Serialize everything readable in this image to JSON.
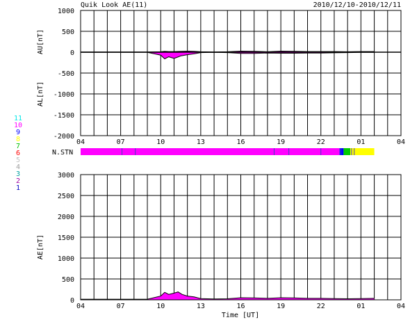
{
  "title": "Quik Look AE(11)",
  "date_range": "2010/12/10-2010/12/11",
  "xlabel": "Time [UT]",
  "nstn_label": "N.STN",
  "colors": {
    "magenta": "#ff00ff",
    "blue": "#0000ff",
    "green": "#00cc00",
    "yellow": "#ffff00",
    "grid": "#000000"
  },
  "station_scale": [
    {
      "label": "11",
      "color": "#00e6e6"
    },
    {
      "label": "10",
      "color": "#ff00ff"
    },
    {
      "label": "9",
      "color": "#0000ff"
    },
    {
      "label": "8",
      "color": "#ffff00"
    },
    {
      "label": "7",
      "color": "#00c000"
    },
    {
      "label": "6",
      "color": "#ff0000"
    },
    {
      "label": "5",
      "color": "#c0c0c0"
    },
    {
      "label": "4",
      "color": "#a0a0a0"
    },
    {
      "label": "3",
      "color": "#00a0a0"
    },
    {
      "label": "2",
      "color": "#a000a0"
    },
    {
      "label": "1",
      "color": "#0000c0"
    }
  ],
  "chart_data": [
    {
      "type": "area",
      "title": "Quik Look AE(11)",
      "ylabel_upper": "AU[nT]",
      "ylabel_lower": "AL[nT]",
      "xlabel": "",
      "x_tick_labels": [
        "04",
        "07",
        "10",
        "13",
        "16",
        "19",
        "22",
        "01",
        "04"
      ],
      "xlim": [
        4,
        28
      ],
      "ylim": [
        -2000,
        1000
      ],
      "y_tick_labels": [
        "1000",
        "500",
        "0",
        "-500",
        "-1000",
        "-1500",
        "-2000"
      ],
      "grid": true,
      "series": [
        {
          "name": "",
          "color": "#000000",
          "x": [
            4,
            6,
            8,
            9,
            10,
            10.3,
            10.6,
            11,
            11.5,
            12,
            12.5,
            13,
            14,
            15,
            16,
            17,
            18,
            19,
            20,
            21,
            22,
            23,
            24,
            25,
            26
          ],
          "au": [
            5,
            5,
            5,
            5,
            10,
            20,
            15,
            15,
            20,
            25,
            20,
            10,
            5,
            10,
            25,
            20,
            10,
            25,
            20,
            15,
            15,
            15,
            10,
            15,
            15
          ],
          "al": [
            -5,
            -5,
            -5,
            -5,
            -70,
            -160,
            -110,
            -150,
            -90,
            -60,
            -40,
            -10,
            -5,
            -10,
            -30,
            -30,
            -20,
            -25,
            -25,
            -20,
            -20,
            -15,
            -10,
            -5,
            -5
          ]
        }
      ]
    },
    {
      "type": "nstn-bar",
      "x_range": [
        4,
        26
      ],
      "segments": [
        {
          "x0": 4,
          "x1": 23.4,
          "color": "#ff00ff"
        },
        {
          "x0": 23.4,
          "x1": 23.7,
          "color": "#0000ff"
        },
        {
          "x0": 23.7,
          "x1": 24.2,
          "color": "#00cc00"
        },
        {
          "x0": 24.2,
          "x1": 26,
          "color": "#ffff00"
        }
      ],
      "marks": [
        7.1,
        8.1,
        18.5,
        19.6,
        22.0,
        23.5,
        24.3,
        24.5
      ]
    },
    {
      "type": "area",
      "title": "",
      "ylabel": "AE[nT]",
      "xlabel": "Time [UT]",
      "x_tick_labels": [
        "04",
        "07",
        "10",
        "13",
        "16",
        "19",
        "22",
        "01",
        "04"
      ],
      "xlim": [
        4,
        28
      ],
      "ylim": [
        0,
        3000
      ],
      "y_tick_labels": [
        "3000",
        "2500",
        "2000",
        "1500",
        "1000",
        "500",
        "0"
      ],
      "grid": true,
      "series": [
        {
          "name": "",
          "color": "#000000",
          "x": [
            4,
            6,
            8,
            9,
            10,
            10.3,
            10.6,
            11,
            11.3,
            11.6,
            12,
            12.5,
            13,
            14,
            15,
            16,
            17,
            18,
            19,
            20,
            21,
            22,
            23,
            24,
            25,
            26
          ],
          "values": [
            15,
            15,
            15,
            15,
            90,
            180,
            130,
            160,
            190,
            130,
            90,
            70,
            30,
            20,
            25,
            50,
            45,
            35,
            50,
            45,
            35,
            35,
            30,
            25,
            30,
            35
          ]
        }
      ]
    }
  ]
}
